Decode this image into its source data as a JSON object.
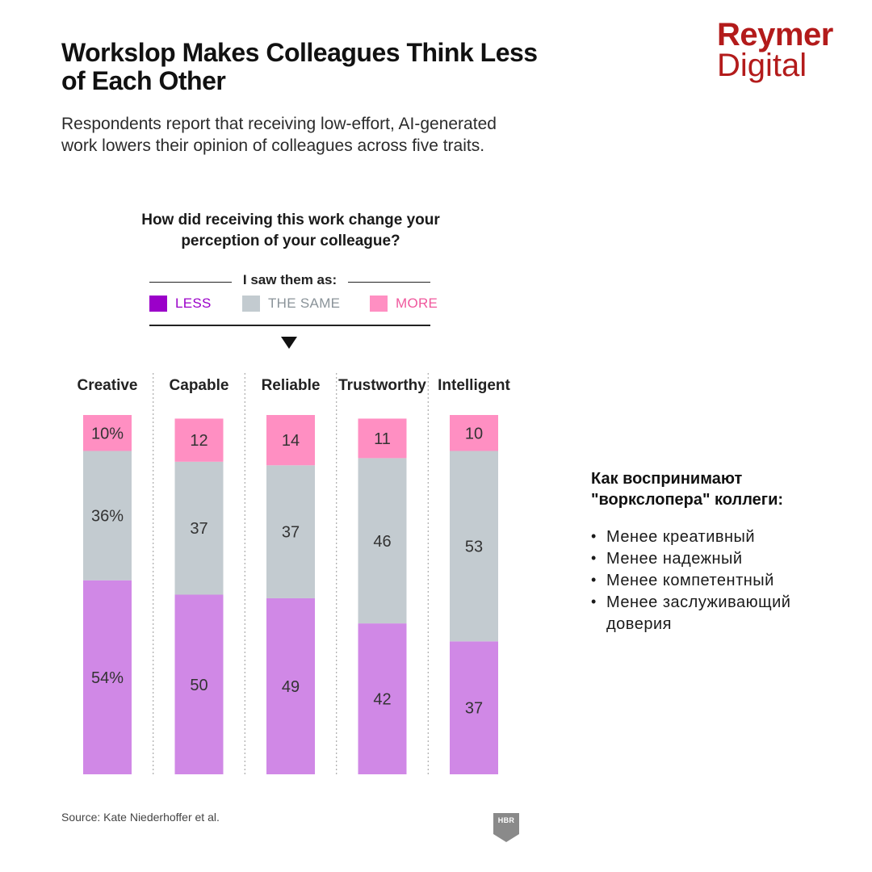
{
  "brand": {
    "line1": "Reymer",
    "line2": "Digital",
    "color": "#b31b1b"
  },
  "title": "Workslop Makes Colleagues Think Less of Each Other",
  "subtitle": "Respondents report that receiving low-effort, AI-generated work lowers their opinion of colleagues across five traits.",
  "question": "How did receiving this work change your perception of your colleague?",
  "legend": {
    "heading": "I saw them as:",
    "items": [
      {
        "label": "LESS",
        "color": "#9b00c9",
        "text_color": "#9b00c9"
      },
      {
        "label": "THE SAME",
        "color": "#c3cbd0",
        "text_color": "#8a9399"
      },
      {
        "label": "MORE",
        "color": "#ff8fc2",
        "text_color": "#f0589d"
      }
    ]
  },
  "chart_data": {
    "type": "bar",
    "stacked": true,
    "normalized_percent": true,
    "categories": [
      "Creative",
      "Capable",
      "Reliable",
      "Trustworthy",
      "Intelligent"
    ],
    "series": [
      {
        "name": "LESS",
        "color": "#d088e6",
        "values": [
          54,
          50,
          49,
          42,
          37
        ],
        "labels": [
          "54%",
          "50",
          "49",
          "42",
          "37"
        ]
      },
      {
        "name": "THE SAME",
        "color": "#c3cbd0",
        "values": [
          36,
          37,
          37,
          46,
          53
        ],
        "labels": [
          "36%",
          "37",
          "37",
          "46",
          "53"
        ]
      },
      {
        "name": "MORE",
        "color": "#ff8fc2",
        "values": [
          10,
          12,
          14,
          11,
          10
        ],
        "labels": [
          "10%",
          "12",
          "14",
          "11",
          "10"
        ]
      }
    ],
    "ylim": [
      0,
      100
    ]
  },
  "source": "Source: Kate Niederhoffer et al.",
  "badge": {
    "text": "HBR"
  },
  "notes": {
    "heading": "Как воспринимают \"воркслопера\" коллеги:",
    "items": [
      "Менее креативный",
      "Менее надежный",
      "Менее компетентный",
      "Менее заслуживающий доверия"
    ]
  }
}
